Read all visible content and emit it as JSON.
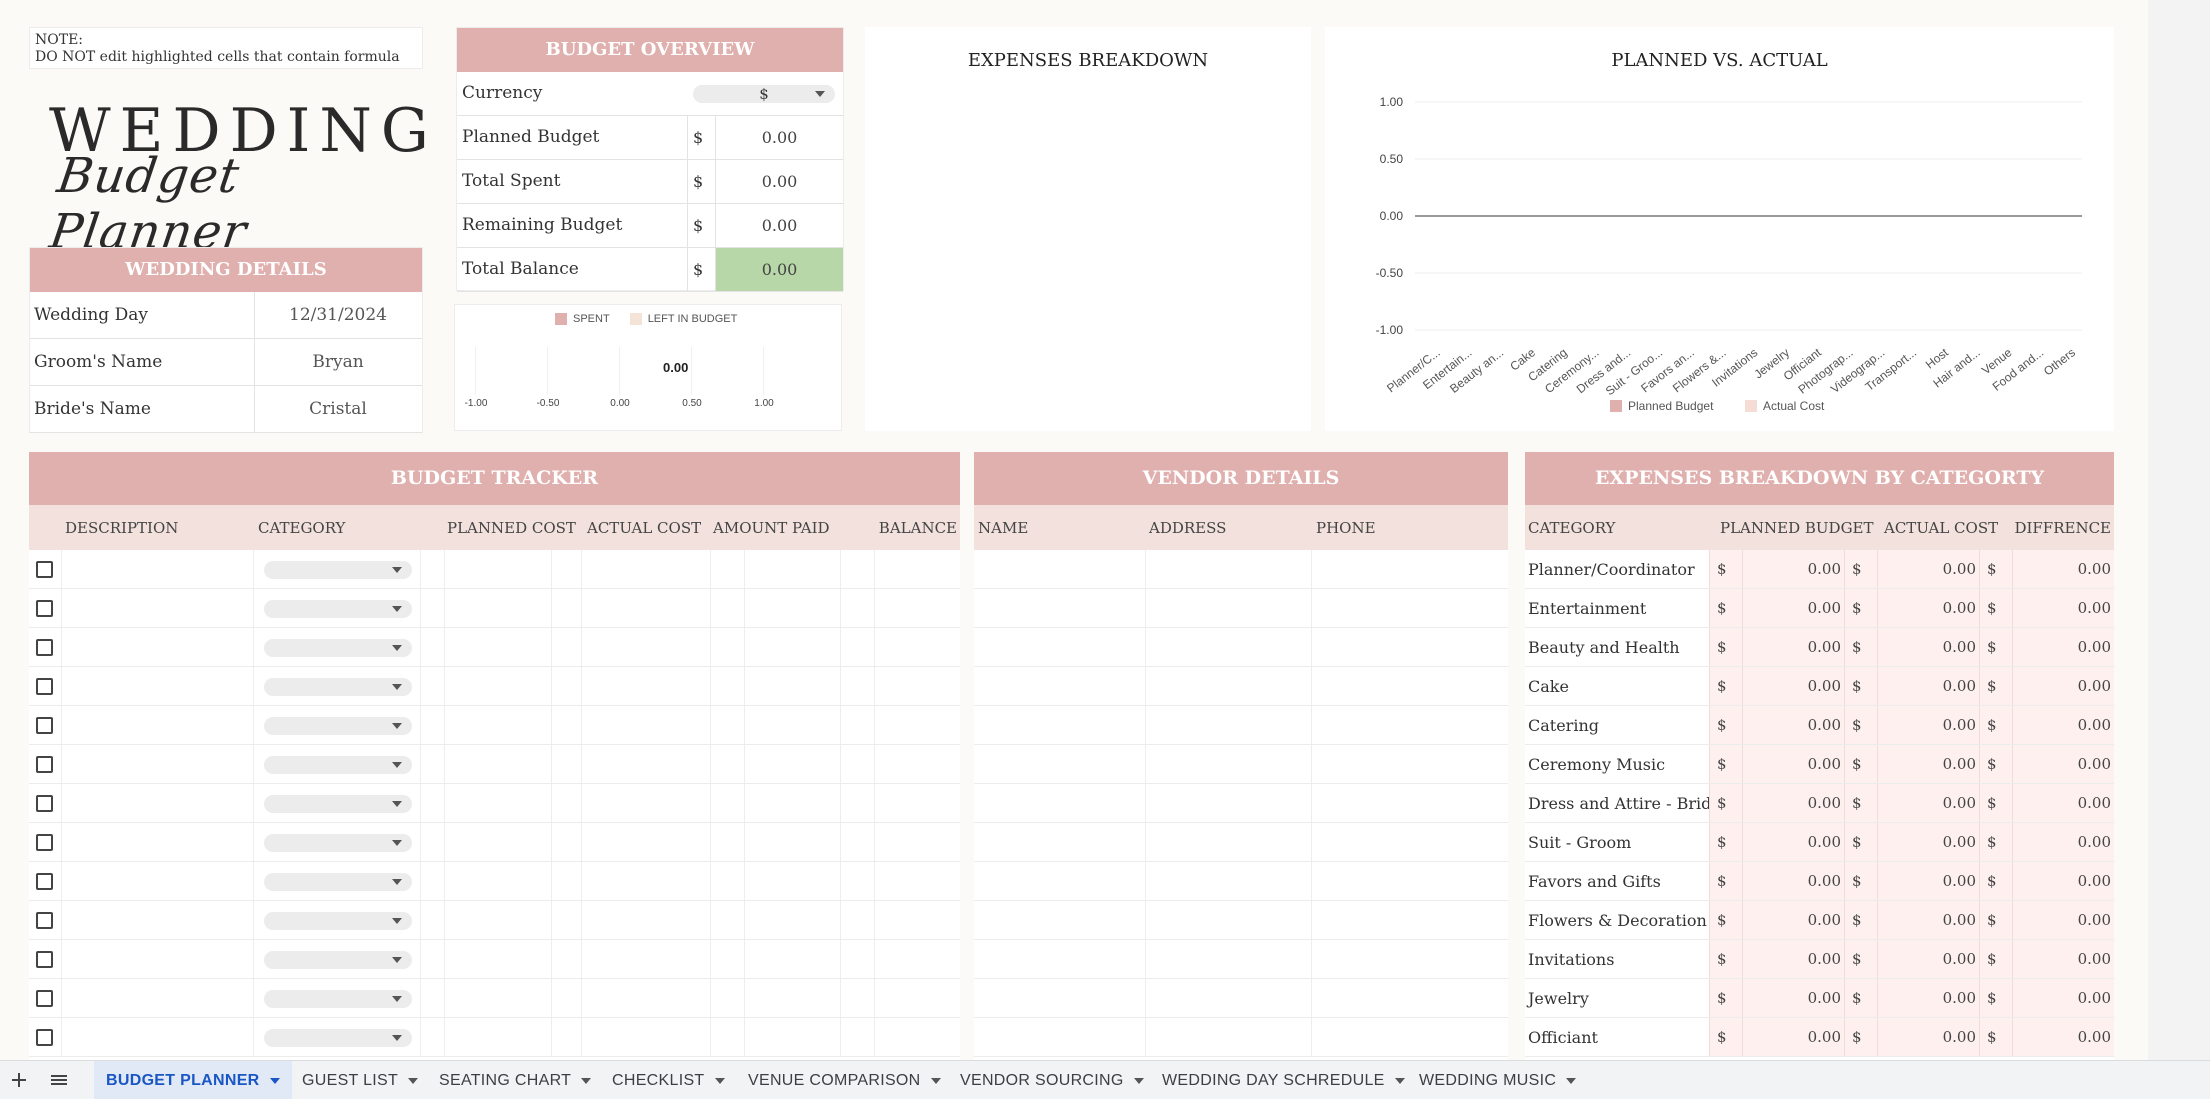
{
  "note": {
    "line1": "NOTE:",
    "line2": "DO NOT edit highlighted cells that contain formula"
  },
  "logo": {
    "line1": "WEDDING",
    "line2": "Budget Planner"
  },
  "wedding_details": {
    "title": "WEDDING DETAILS",
    "rows": [
      {
        "label": "Wedding Day",
        "value": "12/31/2024"
      },
      {
        "label": "Groom's Name",
        "value": "Bryan"
      },
      {
        "label": "Bride's Name",
        "value": "Cristal"
      }
    ]
  },
  "budget_overview": {
    "title": "BUDGET OVERVIEW",
    "currency_label": "Currency",
    "currency_value": "$",
    "rows": [
      {
        "label": "Planned Budget",
        "symbol": "$",
        "value": "0.00"
      },
      {
        "label": "Total Spent",
        "symbol": "$",
        "value": "0.00"
      },
      {
        "label": "Remaining Budget",
        "symbol": "$",
        "value": "0.00"
      },
      {
        "label": "Total Balance",
        "symbol": "$",
        "value": "0.00"
      }
    ]
  },
  "mini_chart": {
    "legend_spent": "SPENT",
    "legend_left": "LEFT IN BUDGET",
    "value_label": "0.00",
    "ticks": [
      "-1.00",
      "-0.50",
      "0.00",
      "0.50",
      "1.00"
    ]
  },
  "expenses_breakdown": {
    "title": "EXPENSES BREAKDOWN"
  },
  "chart_data": {
    "type": "bar",
    "title": "PLANNED VS. ACTUAL",
    "categories": [
      "Planner/C...",
      "Entertain...",
      "Beauty an...",
      "Cake",
      "Catering",
      "Ceremony...",
      "Dress and...",
      "Suit - Groo...",
      "Favors an...",
      "Flowers &...",
      "Invitations",
      "Jewelry",
      "Officiant",
      "Photograp...",
      "Videograp...",
      "Transport...",
      "Host",
      "Hair and...",
      "Venue",
      "Food and...",
      "Others"
    ],
    "series": [
      {
        "name": "Planned Budget",
        "values": [
          0,
          0,
          0,
          0,
          0,
          0,
          0,
          0,
          0,
          0,
          0,
          0,
          0,
          0,
          0,
          0,
          0,
          0,
          0,
          0,
          0
        ],
        "color": "#e0b0ae"
      },
      {
        "name": "Actual Cost",
        "values": [
          0,
          0,
          0,
          0,
          0,
          0,
          0,
          0,
          0,
          0,
          0,
          0,
          0,
          0,
          0,
          0,
          0,
          0,
          0,
          0,
          0
        ],
        "color": "#f5ddd6"
      }
    ],
    "yticks": [
      "1.00",
      "0.50",
      "0.00",
      "-0.50",
      "-1.00"
    ],
    "ylim": [
      -1,
      1
    ],
    "legend": "bottom"
  },
  "budget_tracker": {
    "title": "BUDGET TRACKER",
    "headers": [
      "DESCRIPTION",
      "CATEGORY",
      "PLANNED COST",
      "ACTUAL COST",
      "AMOUNT PAID",
      "BALANCE"
    ],
    "row_count": 13
  },
  "vendor_details": {
    "title": "VENDOR DETAILS",
    "headers": [
      "NAME",
      "ADDRESS",
      "PHONE"
    ]
  },
  "category_breakdown": {
    "title": "EXPENSES BREAKDOWN BY CATEGORTY",
    "headers": [
      "CATEGORY",
      "PLANNED BUDGET",
      "ACTUAL COST",
      "DIFFRENCE"
    ],
    "symbol": "$",
    "rows": [
      {
        "category": "Planner/Coordinator",
        "planned": "0.00",
        "actual": "0.00",
        "diff": "0.00"
      },
      {
        "category": "Entertainment",
        "planned": "0.00",
        "actual": "0.00",
        "diff": "0.00"
      },
      {
        "category": "Beauty and Health",
        "planned": "0.00",
        "actual": "0.00",
        "diff": "0.00"
      },
      {
        "category": "Cake",
        "planned": "0.00",
        "actual": "0.00",
        "diff": "0.00"
      },
      {
        "category": "Catering",
        "planned": "0.00",
        "actual": "0.00",
        "diff": "0.00"
      },
      {
        "category": "Ceremony Music",
        "planned": "0.00",
        "actual": "0.00",
        "diff": "0.00"
      },
      {
        "category": "Dress and Attire - Bride",
        "planned": "0.00",
        "actual": "0.00",
        "diff": "0.00"
      },
      {
        "category": "Suit - Groom",
        "planned": "0.00",
        "actual": "0.00",
        "diff": "0.00"
      },
      {
        "category": "Favors and Gifts",
        "planned": "0.00",
        "actual": "0.00",
        "diff": "0.00"
      },
      {
        "category": "Flowers & Decoration",
        "planned": "0.00",
        "actual": "0.00",
        "diff": "0.00"
      },
      {
        "category": "Invitations",
        "planned": "0.00",
        "actual": "0.00",
        "diff": "0.00"
      },
      {
        "category": "Jewelry",
        "planned": "0.00",
        "actual": "0.00",
        "diff": "0.00"
      },
      {
        "category": "Officiant",
        "planned": "0.00",
        "actual": "0.00",
        "diff": "0.00"
      }
    ]
  },
  "sheet_tabs": {
    "add_icon": "plus-icon",
    "menu_icon": "hamburger-icon",
    "tabs": [
      "BUDGET PLANNER",
      "GUEST LIST",
      "SEATING CHART",
      "CHECKLIST",
      "VENUE COMPARISON",
      "VENDOR SOURCING",
      "WEDDING DAY SCHREDULE",
      "WEDDING MUSIC"
    ],
    "active": "BUDGET PLANNER"
  },
  "colors": {
    "accent_pink": "#e0b0ae",
    "subhead": "#f2e1dc",
    "green_balance": "#b7d7a8",
    "active_tab": "#1a56c4"
  }
}
